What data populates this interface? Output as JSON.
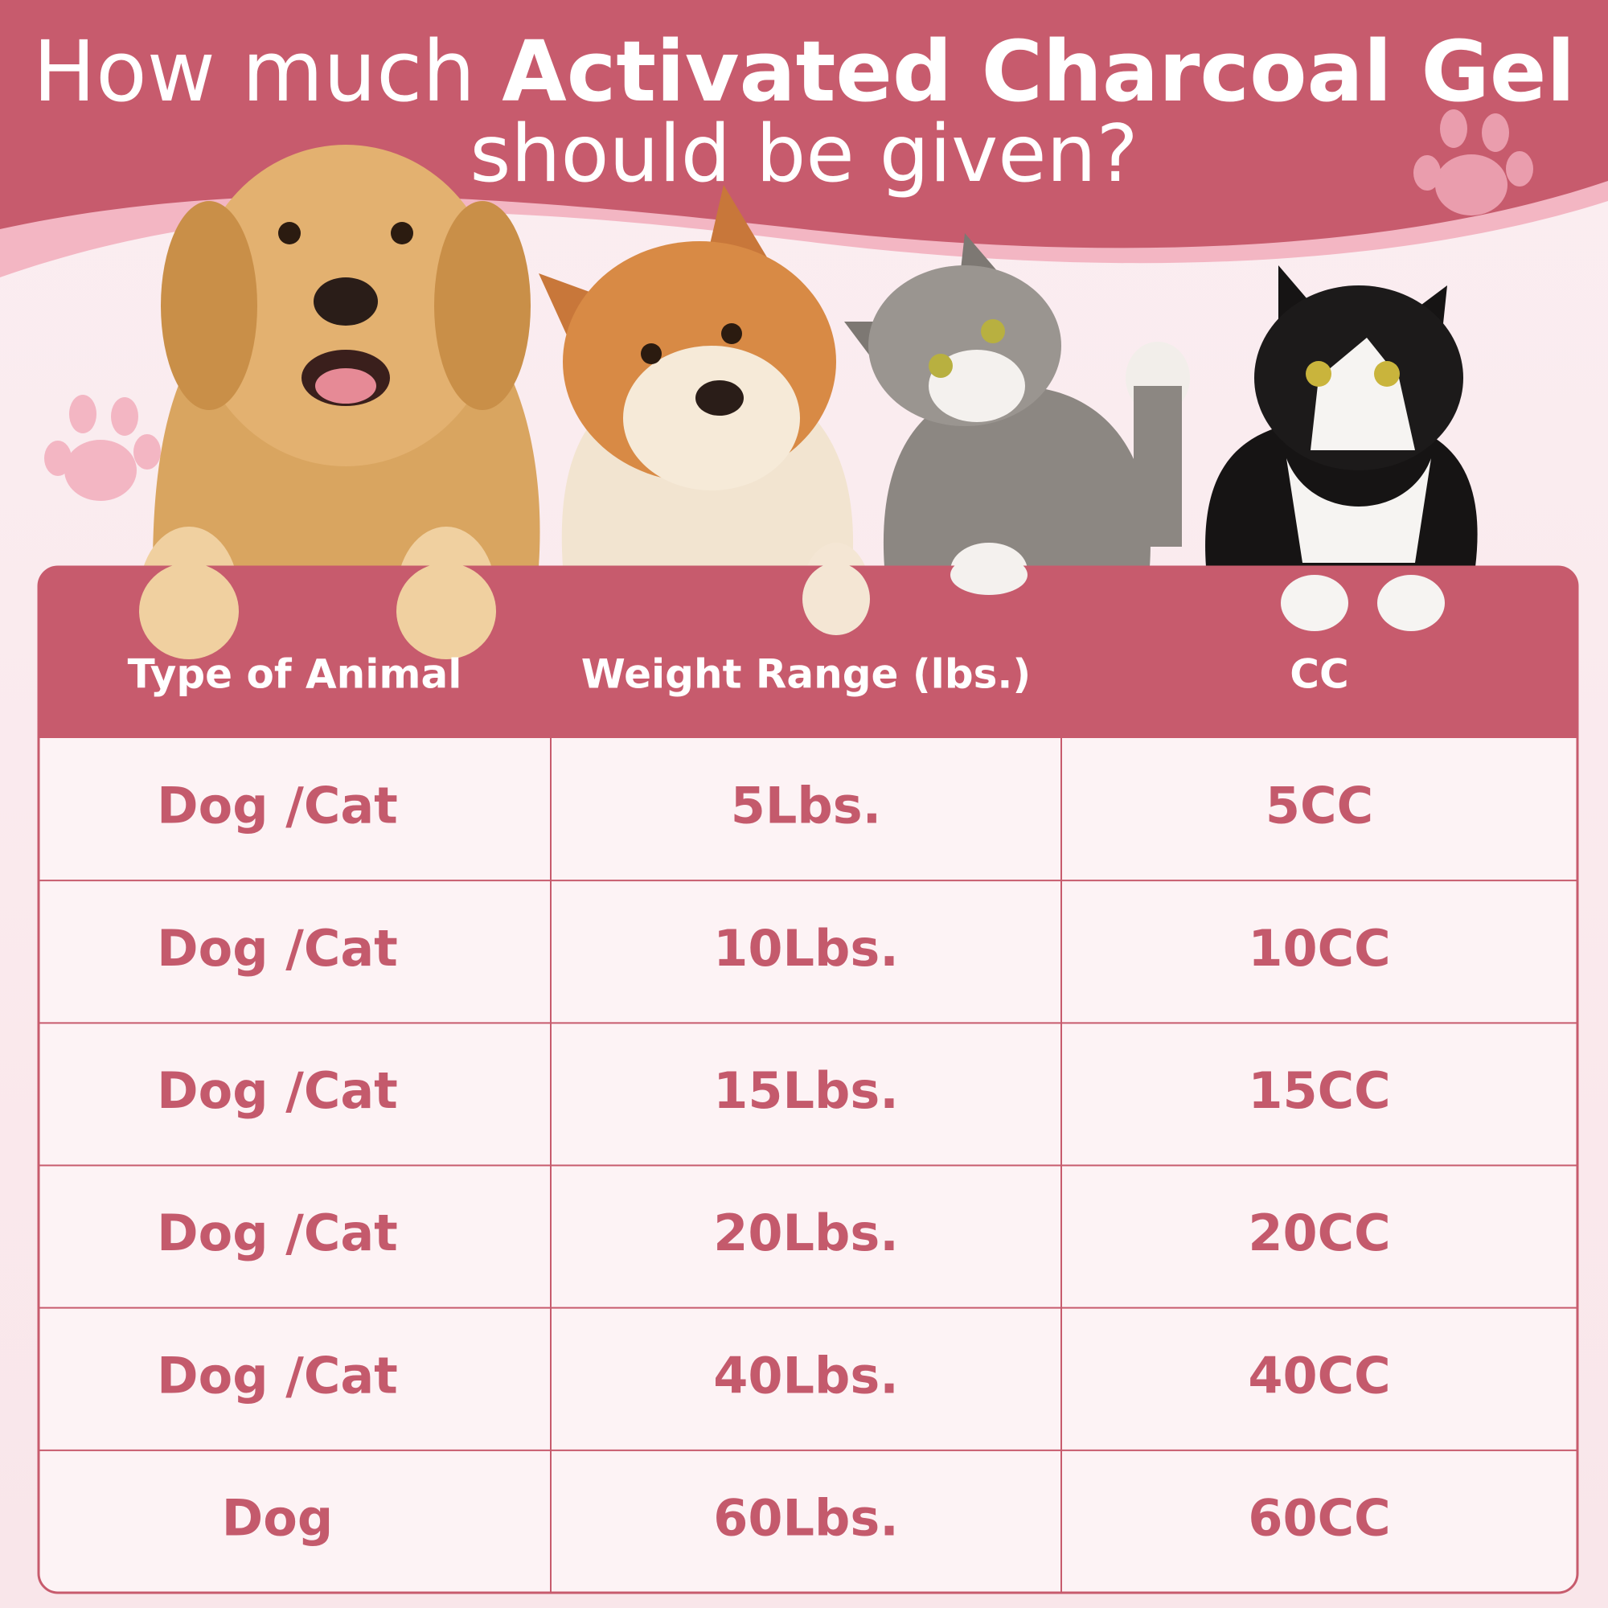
{
  "header": {
    "title_prefix": "How much",
    "title_emphasis": "Activated Charcoal Gel",
    "title_suffix": "should be given?"
  },
  "table": {
    "columns": [
      "Type of Animal",
      "Weight Range (lbs.)",
      "CC"
    ],
    "rows": [
      [
        "Dog /Cat",
        "5Lbs.",
        "5CC"
      ],
      [
        "Dog /Cat",
        "10Lbs.",
        "10CC"
      ],
      [
        "Dog /Cat",
        "15Lbs.",
        "15CC"
      ],
      [
        "Dog /Cat",
        "20Lbs.",
        "20CC"
      ],
      [
        "Dog /Cat",
        "40Lbs.",
        "40CC"
      ],
      [
        "Dog",
        "60Lbs.",
        "60CC"
      ]
    ]
  }
}
